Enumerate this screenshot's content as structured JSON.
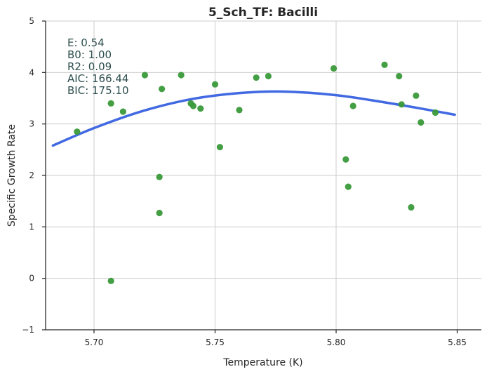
{
  "chart_data": {
    "type": "scatter",
    "title": "5_Sch_TF: Bacilli",
    "xlabel": "Temperature (K)",
    "ylabel": "Specific Growth Rate",
    "xlim": [
      5.68,
      5.86
    ],
    "ylim": [
      -1,
      5
    ],
    "x_ticks": [
      5.7,
      5.75,
      5.8,
      5.85
    ],
    "x_tick_labels": [
      "5.70",
      "5.75",
      "5.80",
      "5.85"
    ],
    "y_ticks": [
      -1,
      0,
      1,
      2,
      3,
      4,
      5
    ],
    "y_tick_labels": [
      "−1",
      "0",
      "1",
      "2",
      "3",
      "4",
      "5"
    ],
    "grid": true,
    "stats": [
      "E:  0.54",
      "B0:  1.00",
      "R2:  0.09",
      "AIC: 166.44",
      "BIC: 175.10"
    ],
    "colors": {
      "points": "#3a9a3a",
      "fit_line": "#4169e1",
      "stats_text": "#2f4f4f"
    },
    "points": [
      {
        "x": 5.693,
        "y": 2.85
      },
      {
        "x": 5.707,
        "y": -0.05
      },
      {
        "x": 5.707,
        "y": 3.4
      },
      {
        "x": 5.712,
        "y": 3.24
      },
      {
        "x": 5.721,
        "y": 3.95
      },
      {
        "x": 5.727,
        "y": 1.27
      },
      {
        "x": 5.727,
        "y": 1.97
      },
      {
        "x": 5.728,
        "y": 3.68
      },
      {
        "x": 5.736,
        "y": 3.95
      },
      {
        "x": 5.74,
        "y": 3.4
      },
      {
        "x": 5.741,
        "y": 3.35
      },
      {
        "x": 5.744,
        "y": 3.3
      },
      {
        "x": 5.75,
        "y": 3.77
      },
      {
        "x": 5.752,
        "y": 2.55
      },
      {
        "x": 5.76,
        "y": 3.27
      },
      {
        "x": 5.767,
        "y": 3.9
      },
      {
        "x": 5.772,
        "y": 3.93
      },
      {
        "x": 5.799,
        "y": 4.08
      },
      {
        "x": 5.804,
        "y": 2.31
      },
      {
        "x": 5.805,
        "y": 1.78
      },
      {
        "x": 5.807,
        "y": 3.35
      },
      {
        "x": 5.82,
        "y": 4.15
      },
      {
        "x": 5.826,
        "y": 3.93
      },
      {
        "x": 5.827,
        "y": 3.38
      },
      {
        "x": 5.831,
        "y": 1.38
      },
      {
        "x": 5.833,
        "y": 3.55
      },
      {
        "x": 5.835,
        "y": 3.03
      },
      {
        "x": 5.841,
        "y": 3.22
      }
    ],
    "fit_curve": [
      {
        "x": 5.683,
        "y": 2.58
      },
      {
        "x": 5.7,
        "y": 2.92
      },
      {
        "x": 5.72,
        "y": 3.25
      },
      {
        "x": 5.74,
        "y": 3.48
      },
      {
        "x": 5.76,
        "y": 3.6
      },
      {
        "x": 5.778,
        "y": 3.63
      },
      {
        "x": 5.8,
        "y": 3.56
      },
      {
        "x": 5.82,
        "y": 3.42
      },
      {
        "x": 5.835,
        "y": 3.3
      },
      {
        "x": 5.849,
        "y": 3.18
      }
    ]
  }
}
